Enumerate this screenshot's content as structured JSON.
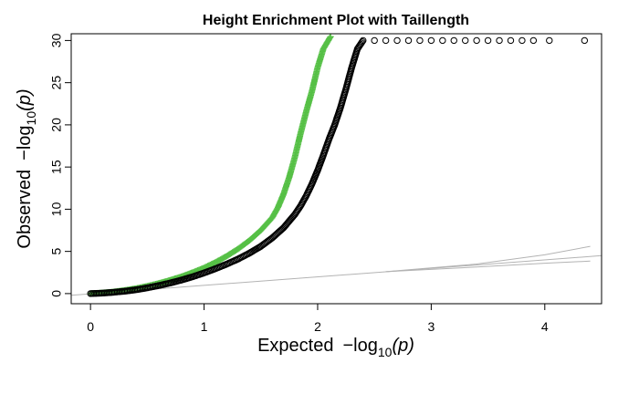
{
  "chart_data": {
    "type": "scatter",
    "title": "Height Enrichment Plot with Taillength",
    "xlabel": {
      "prefix": "Expected",
      "minus": "−log",
      "sub": "10",
      "arg": "(p)"
    },
    "ylabel": {
      "prefix": "Observed",
      "minus": "−log",
      "sub": "10",
      "arg": "(p)"
    },
    "xlim": [
      -0.17,
      4.5
    ],
    "ylim": [
      -1.2,
      30.8
    ],
    "x_ticks": [
      0,
      1,
      2,
      3,
      4
    ],
    "y_ticks": [
      0,
      5,
      10,
      15,
      20,
      25,
      30
    ],
    "grid": false,
    "legend": "none",
    "colors": {
      "all_snps": "#000000",
      "enriched": "#56c046",
      "reference": "#b3b3b3"
    },
    "series": [
      {
        "marker": "open-circle",
        "color": "#000000",
        "points": [
          [
            0.0,
            0.0
          ],
          [
            0.1,
            0.05
          ],
          [
            0.2,
            0.15
          ],
          [
            0.3,
            0.28
          ],
          [
            0.4,
            0.45
          ],
          [
            0.5,
            0.68
          ],
          [
            0.6,
            0.95
          ],
          [
            0.7,
            1.25
          ],
          [
            0.8,
            1.6
          ],
          [
            0.9,
            2.0
          ],
          [
            1.0,
            2.45
          ],
          [
            1.1,
            2.95
          ],
          [
            1.2,
            3.5
          ],
          [
            1.3,
            4.1
          ],
          [
            1.4,
            4.8
          ],
          [
            1.5,
            5.6
          ],
          [
            1.6,
            6.6
          ],
          [
            1.7,
            7.8
          ],
          [
            1.8,
            9.4
          ],
          [
            1.85,
            10.4
          ],
          [
            1.9,
            11.6
          ],
          [
            1.95,
            13.0
          ],
          [
            2.0,
            14.6
          ],
          [
            2.05,
            16.4
          ],
          [
            2.1,
            18.3
          ],
          [
            2.15,
            20.0
          ],
          [
            2.2,
            22.0
          ],
          [
            2.25,
            24.3
          ],
          [
            2.3,
            26.8
          ],
          [
            2.35,
            29.0
          ],
          [
            2.4,
            30.0
          ],
          [
            2.5,
            30.0
          ],
          [
            2.6,
            30.0
          ],
          [
            2.7,
            30.0
          ],
          [
            2.8,
            30.0
          ],
          [
            2.9,
            30.0
          ],
          [
            3.0,
            30.0
          ],
          [
            3.1,
            30.0
          ],
          [
            3.2,
            30.0
          ],
          [
            3.3,
            30.0
          ],
          [
            3.4,
            30.0
          ],
          [
            3.5,
            30.0
          ],
          [
            3.6,
            30.0
          ],
          [
            3.7,
            30.0
          ],
          [
            3.8,
            30.0
          ],
          [
            3.9,
            30.0
          ],
          [
            4.04,
            30.0
          ],
          [
            4.35,
            30.0
          ]
        ]
      },
      {
        "marker": "plus",
        "color": "#56c046",
        "points": [
          [
            0.0,
            0.0
          ],
          [
            0.1,
            0.08
          ],
          [
            0.2,
            0.2
          ],
          [
            0.3,
            0.38
          ],
          [
            0.4,
            0.6
          ],
          [
            0.5,
            0.88
          ],
          [
            0.6,
            1.2
          ],
          [
            0.7,
            1.58
          ],
          [
            0.8,
            2.0
          ],
          [
            0.9,
            2.5
          ],
          [
            1.0,
            3.05
          ],
          [
            1.1,
            3.7
          ],
          [
            1.2,
            4.45
          ],
          [
            1.3,
            5.3
          ],
          [
            1.4,
            6.3
          ],
          [
            1.5,
            7.5
          ],
          [
            1.6,
            9.0
          ],
          [
            1.65,
            10.2
          ],
          [
            1.7,
            11.8
          ],
          [
            1.75,
            13.8
          ],
          [
            1.8,
            16.2
          ],
          [
            1.85,
            19.0
          ],
          [
            1.9,
            21.6
          ],
          [
            1.95,
            24.0
          ],
          [
            2.0,
            26.8
          ],
          [
            2.05,
            29.0
          ],
          [
            2.12,
            30.6
          ],
          [
            2.16,
            31.2
          ]
        ]
      }
    ],
    "reference_lines": [
      {
        "points": [
          [
            -0.17,
            -0.2
          ],
          [
            4.5,
            4.5
          ]
        ]
      },
      {
        "points": [
          [
            2.6,
            2.6
          ],
          [
            3.4,
            3.15
          ],
          [
            4.0,
            3.6
          ],
          [
            4.4,
            3.85
          ]
        ]
      },
      {
        "points": [
          [
            2.6,
            2.6
          ],
          [
            3.4,
            3.5
          ],
          [
            4.0,
            4.6
          ],
          [
            4.4,
            5.6
          ]
        ]
      }
    ]
  }
}
